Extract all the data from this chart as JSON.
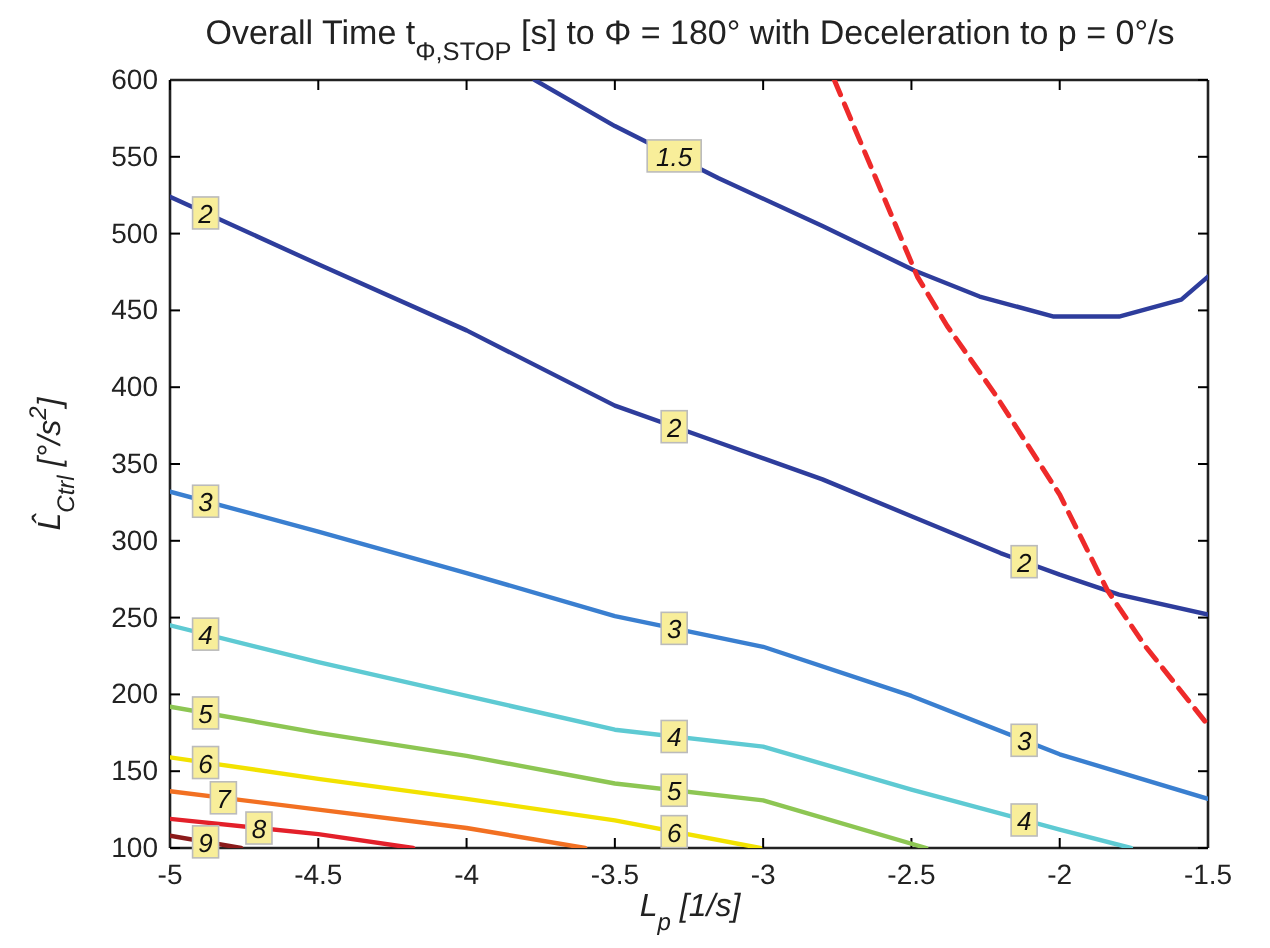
{
  "chart_data": {
    "type": "line",
    "title": "Overall Time t$_{Φ,STOP}$ [s] to  Φ = 180° with Deceleration to p = 0°/s",
    "xlabel": "L$_{p}$ [1/s]",
    "ylabel": "L̂$_{Ctrl}$ [°/s$^{2}$]",
    "xlim": [
      -5,
      -1.5
    ],
    "ylim": [
      100,
      600
    ],
    "xticks": [
      -5,
      -4.5,
      -4,
      -3.5,
      -3,
      -2.5,
      -2,
      -1.5
    ],
    "yticks": [
      100,
      150,
      200,
      250,
      300,
      350,
      400,
      450,
      500,
      550,
      600
    ],
    "grid": false,
    "marker": "none",
    "line_style": "solid",
    "series": [
      {
        "name": "1.5",
        "color": "#2e3d9c",
        "x": [
          -3.77,
          -3.5,
          -3.15,
          -2.8,
          -2.49,
          -2.27,
          -2.02,
          -1.8,
          -1.59,
          -1.5
        ],
        "values": [
          600,
          570,
          536,
          505,
          476,
          459,
          446,
          446,
          457,
          472
        ]
      },
      {
        "name": "2",
        "color": "#2e3d9c",
        "x": [
          -5,
          -4.5,
          -4,
          -3.5,
          -3.15,
          -2.8,
          -2.5,
          -2.2,
          -2,
          -1.8,
          -1.5
        ],
        "values": [
          524,
          480,
          437,
          388,
          364,
          340,
          316,
          292,
          278,
          265,
          252
        ]
      },
      {
        "name": "3",
        "color": "#3a7fd0",
        "x": [
          -5,
          -4.5,
          -4,
          -3.5,
          -3,
          -2.5,
          -2,
          -1.5
        ],
        "values": [
          332,
          306,
          279,
          251,
          231,
          199,
          161,
          132
        ]
      },
      {
        "name": "4",
        "color": "#5ecad3",
        "x": [
          -5,
          -4.5,
          -4,
          -3.5,
          -3,
          -2.5,
          -2,
          -1.76
        ],
        "values": [
          245,
          221,
          199,
          177,
          166,
          138,
          112,
          100
        ]
      },
      {
        "name": "5",
        "color": "#8dc653",
        "x": [
          -5,
          -4.5,
          -4,
          -3.5,
          -3,
          -2.45
        ],
        "values": [
          192,
          175,
          160,
          142,
          131,
          100
        ]
      },
      {
        "name": "6",
        "color": "#f2e200",
        "x": [
          -5,
          -4.5,
          -4,
          -3.5,
          -3.01
        ],
        "values": [
          159,
          145,
          132,
          118,
          100
        ]
      },
      {
        "name": "7",
        "color": "#f27022",
        "x": [
          -5,
          -4.5,
          -4,
          -3.6
        ],
        "values": [
          137,
          125,
          113,
          100
        ]
      },
      {
        "name": "8",
        "color": "#e3202a",
        "x": [
          -5,
          -4.5,
          -4.18
        ],
        "values": [
          119,
          109,
          100
        ]
      },
      {
        "name": "9",
        "color": "#8b1a1a",
        "x": [
          -5,
          -4.76
        ],
        "values": [
          108,
          100
        ]
      },
      {
        "color": "#ee2a2a",
        "line_style": "dashed",
        "x": [
          -2.76,
          -2.48,
          -2.38,
          -2.22,
          -2,
          -1.84,
          -1.71,
          -1.5
        ],
        "values": [
          600,
          472,
          440,
          396,
          330,
          268,
          231,
          180
        ]
      }
    ]
  }
}
